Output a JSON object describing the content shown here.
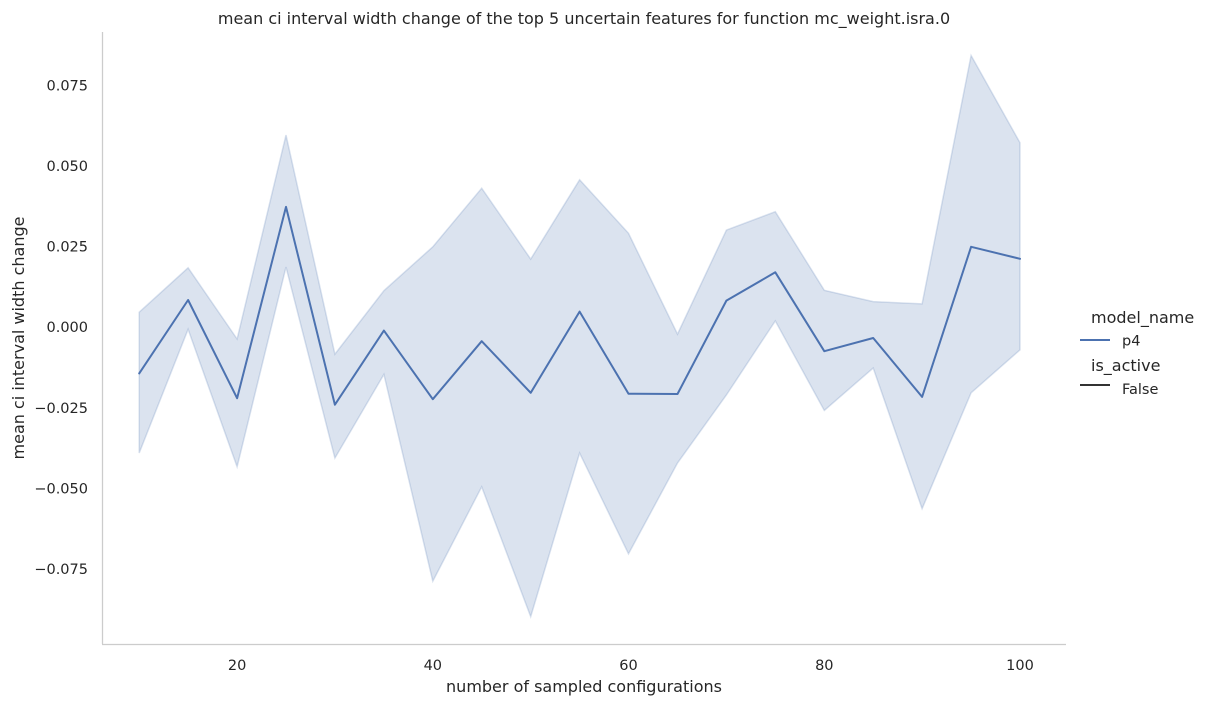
{
  "chart_data": {
    "type": "line",
    "title": "mean ci interval width change of the top 5 uncertain features for function mc_weight.isra.0",
    "xlabel": "number of sampled configurations",
    "ylabel": "mean ci interval width change",
    "xlim": [
      6.2,
      104.7
    ],
    "ylim": [
      -0.0985,
      0.0915
    ],
    "x_ticks": [
      20,
      40,
      60,
      80,
      100
    ],
    "x_tick_labels": [
      "20",
      "40",
      "60",
      "80",
      "100"
    ],
    "y_ticks": [
      -0.075,
      -0.05,
      -0.025,
      0.0,
      0.025,
      0.05,
      0.075
    ],
    "y_tick_labels": [
      "−0.075",
      "−0.050",
      "−0.025",
      "0.000",
      "0.025",
      "0.050",
      "0.075"
    ],
    "grid": false,
    "legend_placement": "right",
    "legend": {
      "hue_title": "model_name",
      "hue_entries": [
        {
          "label": "p4",
          "color": "#4c72b0"
        }
      ],
      "style_title": "is_active",
      "style_entries": [
        {
          "label": "False",
          "color": "#333333"
        }
      ]
    },
    "x": [
      10,
      15,
      20,
      25,
      30,
      35,
      40,
      45,
      50,
      55,
      60,
      65,
      70,
      75,
      80,
      85,
      90,
      95,
      100
    ],
    "series": [
      {
        "name": "p4",
        "color": "#4c72b0",
        "band_color": "#4c72b0",
        "values": [
          -0.0145,
          0.0083,
          -0.0222,
          0.0372,
          -0.0242,
          -0.0012,
          -0.0225,
          -0.0045,
          -0.0205,
          0.0047,
          -0.0208,
          -0.0209,
          0.0081,
          0.0169,
          -0.0076,
          -0.0035,
          -0.0218,
          0.0248,
          0.0211
        ],
        "ci_low": [
          -0.0392,
          -0.0008,
          -0.0435,
          0.0185,
          -0.0408,
          -0.0148,
          -0.079,
          -0.0497,
          -0.09,
          -0.0392,
          -0.0705,
          -0.0423,
          -0.0212,
          0.0018,
          -0.026,
          -0.0128,
          -0.0565,
          -0.0205,
          -0.0072
        ],
        "ci_high": [
          0.0045,
          0.0183,
          -0.0038,
          0.0595,
          -0.0085,
          0.0112,
          0.0248,
          0.043,
          0.021,
          0.0456,
          0.029,
          -0.0023,
          0.03,
          0.0357,
          0.0113,
          0.0078,
          0.0071,
          0.0842,
          0.0571
        ]
      }
    ]
  }
}
